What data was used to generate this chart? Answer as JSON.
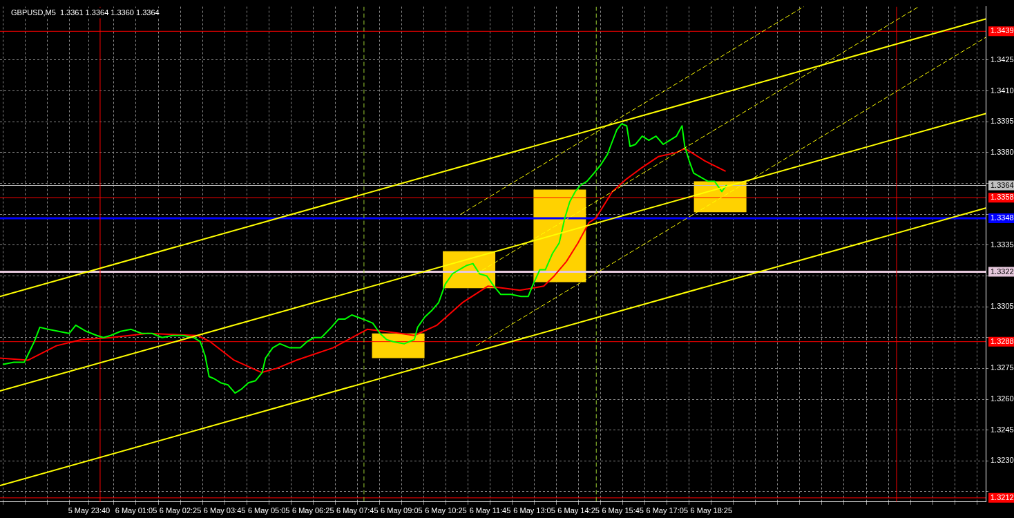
{
  "chart_data": {
    "type": "line",
    "title": "GBPUSD,M5  1.3361 1.3364 1.3360 1.3364",
    "grid": true,
    "legend": false,
    "xlim": [
      "--05-05T20:59",
      "--05-07T02:41"
    ],
    "ylim": [
      1.321,
      1.3451
    ],
    "xticks": [
      {
        "value": "--05-05T21:05",
        "label": null
      },
      {
        "value": "--05-05T21:45",
        "label": null
      },
      {
        "value": "--05-05T22:25",
        "label": null
      },
      {
        "value": "--05-05T23:05",
        "label": null
      },
      {
        "value": "--05-05T23:40",
        "label": "5 May 23:40"
      },
      {
        "value": "--05-06T00:25",
        "label": null
      },
      {
        "value": "--05-06T01:05",
        "label": "6 May 01:05"
      },
      {
        "value": "--05-06T01:45",
        "label": null
      },
      {
        "value": "--05-06T02:25",
        "label": "6 May 02:25"
      },
      {
        "value": "--05-06T03:05",
        "label": null
      },
      {
        "value": "--05-06T03:45",
        "label": "6 May 03:45"
      },
      {
        "value": "--05-06T04:25",
        "label": null
      },
      {
        "value": "--05-06T05:05",
        "label": "6 May 05:05"
      },
      {
        "value": "--05-06T05:45",
        "label": null
      },
      {
        "value": "--05-06T06:25",
        "label": "6 May 06:25"
      },
      {
        "value": "--05-06T07:05",
        "label": null
      },
      {
        "value": "--05-06T07:45",
        "label": "6 May 07:45"
      },
      {
        "value": "--05-06T08:25",
        "label": null
      },
      {
        "value": "--05-06T09:05",
        "label": "6 May 09:05"
      },
      {
        "value": "--05-06T09:45",
        "label": null
      },
      {
        "value": "--05-06T10:25",
        "label": "6 May 10:25"
      },
      {
        "value": "--05-06T11:05",
        "label": null
      },
      {
        "value": "--05-06T11:45",
        "label": "6 May 11:45"
      },
      {
        "value": "--05-06T12:25",
        "label": null
      },
      {
        "value": "--05-06T13:05",
        "label": "6 May 13:05"
      },
      {
        "value": "--05-06T13:45",
        "label": null
      },
      {
        "value": "--05-06T14:25",
        "label": "6 May 14:25"
      },
      {
        "value": "--05-06T15:05",
        "label": null
      },
      {
        "value": "--05-06T15:45",
        "label": "6 May 15:45"
      },
      {
        "value": "--05-06T16:25",
        "label": null
      },
      {
        "value": "--05-06T17:05",
        "label": "6 May 17:05"
      },
      {
        "value": "--05-06T17:45",
        "label": null
      },
      {
        "value": "--05-06T18:25",
        "label": "6 May 18:25"
      },
      {
        "value": "--05-06T19:05",
        "label": null
      },
      {
        "value": "--05-06T19:45",
        "label": null
      },
      {
        "value": "--05-06T20:25",
        "label": null
      },
      {
        "value": "--05-06T21:05",
        "label": null
      },
      {
        "value": "--05-06T21:45",
        "label": null
      },
      {
        "value": "--05-06T22:25",
        "label": null
      },
      {
        "value": "--05-06T23:05",
        "label": null
      },
      {
        "value": "--05-06T23:45",
        "label": null
      },
      {
        "value": "--05-07T00:25",
        "label": null
      },
      {
        "value": "--05-07T01:05",
        "label": null
      },
      {
        "value": "--05-07T01:45",
        "label": null
      },
      {
        "value": "--05-07T02:25",
        "label": null
      }
    ],
    "yticks": [
      {
        "value": 1.3215,
        "label": null
      },
      {
        "value": 1.323,
        "label": "1.3230"
      },
      1.3245,
      {
        "value": 1.326,
        "label": "1.3260"
      },
      1.3275,
      {
        "value": 1.329,
        "label": null
      },
      1.3305,
      {
        "value": 1.332,
        "label": null
      },
      1.3335,
      {
        "value": 1.335,
        "label": null
      },
      {
        "value": 1.3365,
        "label": null
      },
      {
        "value": 1.338,
        "label": "1.3380"
      },
      1.3395,
      {
        "value": 1.341,
        "label": "1.3410"
      },
      1.3425
    ],
    "series": [
      {
        "type": "bar",
        "color": "#ffd200",
        "x": [
          "--05-06T08:59",
          "--05-06T11:07",
          "--05-06T13:51",
          "--05-06T18:41"
        ],
        "base": [
          1.328,
          1.3314,
          1.3317,
          1.3351
        ],
        "values": [
          0.0012,
          0.0018,
          0.0045,
          0.0015
        ]
      },
      {
        "color": "#ffff00",
        "line_style": "solid",
        "x": [
          "--05-05T20:59",
          "--05-07T02:41"
        ],
        "values": [
          1.331,
          1.3445
        ]
      },
      {
        "color": "#ffff00",
        "line_style": "solid",
        "x": [
          "--05-05T20:59",
          "--05-07T02:41"
        ],
        "values": [
          1.3264,
          1.3399
        ]
      },
      {
        "color": "#ffff00",
        "line_style": "solid",
        "x": [
          "--05-05T20:59",
          "--05-07T02:41"
        ],
        "values": [
          1.3218,
          1.3353
        ]
      },
      {
        "color": "#ffff00",
        "line_style": "dashed",
        "x": [
          "--05-06T10:52",
          "--05-06T21:12"
        ],
        "values": [
          1.335,
          1.3451
        ]
      },
      {
        "color": "#ffff00",
        "line_style": "dashed",
        "x": [
          "--05-06T11:20",
          "--05-07T00:40"
        ],
        "values": [
          1.3321,
          1.3451
        ]
      },
      {
        "color": "#ffff00",
        "line_style": "dashed",
        "x": [
          "--05-06T11:20",
          "--05-07T02:41"
        ],
        "values": [
          1.3286,
          1.3436
        ]
      },
      {
        "color": "#00ff00",
        "line_style": "solid",
        "x": [
          "--05-05T21:05",
          "--05-05T21:24",
          "--05-05T21:43",
          "--05-05T21:52",
          "--05-05T22:01",
          "--05-05T22:11",
          "--05-05T22:26",
          "--05-05T22:45",
          "--05-05T23:04",
          "--05-05T23:16",
          "--05-05T23:35",
          "--05-05T23:54",
          "--05-06T00:06",
          "--05-06T00:19",
          "--05-06T00:37",
          "--05-06T00:56",
          "--05-06T01:15",
          "--05-06T01:34",
          "--05-06T01:52",
          "--05-06T02:11",
          "--05-06T02:30",
          "--05-06T02:49",
          "--05-06T03:01",
          "--05-06T03:10",
          "--05-06T03:17",
          "--05-06T03:26",
          "--05-06T03:38",
          "--05-06T03:51",
          "--05-06T04:04",
          "--05-06T04:16",
          "--05-06T04:28",
          "--05-06T04:41",
          "--05-06T04:53",
          "--05-06T04:59",
          "--05-06T05:12",
          "--05-06T05:25",
          "--05-06T05:43",
          "--05-06T06:02",
          "--05-06T06:14",
          "--05-06T06:27",
          "--05-06T06:40",
          "--05-06T06:58",
          "--05-06T07:11",
          "--05-06T07:23",
          "--05-06T07:35",
          "--05-06T07:55",
          "--05-06T08:13",
          "--05-06T08:26",
          "--05-06T08:38",
          "--05-06T08:50",
          "--05-06T09:10",
          "--05-06T09:28",
          "--05-06T09:34",
          "--05-06T09:47",
          "--05-06T09:59",
          "--05-06T10:12",
          "--05-06T10:24",
          "--05-06T10:37",
          "--05-06T10:49",
          "--05-06T11:02",
          "--05-06T11:14",
          "--05-06T11:26",
          "--05-06T11:39",
          "--05-06T11:52",
          "--05-06T12:04",
          "--05-06T12:23",
          "--05-06T12:41",
          "--05-06T12:54",
          "--05-06T13:03",
          "--05-06T13:15",
          "--05-06T13:25",
          "--05-06T13:38",
          "--05-06T13:50",
          "--05-06T14:00",
          "--05-06T14:09",
          "--05-06T14:19",
          "--05-06T14:28",
          "--05-06T14:40",
          "--05-06T14:53",
          "--05-06T15:05",
          "--05-06T15:17",
          "--05-06T15:24",
          "--05-06T15:34",
          "--05-06T15:43",
          "--05-06T15:52",
          "--05-06T15:58",
          "--05-06T16:08",
          "--05-06T16:20",
          "--05-06T16:32",
          "--05-06T16:45",
          "--05-06T16:58",
          "--05-06T17:10",
          "--05-06T17:22",
          "--05-06T17:32",
          "--05-06T17:37",
          "--05-06T17:45",
          "--05-06T17:53",
          "--05-06T18:06",
          "--05-06T18:19",
          "--05-06T18:31",
          "--05-06T18:44",
          "--05-06T18:52"
        ],
        "values": [
          1.3277,
          1.3278,
          1.3278,
          1.3283,
          1.3288,
          1.3295,
          1.3294,
          1.3293,
          1.3292,
          1.3296,
          1.3293,
          1.3291,
          1.329,
          1.3291,
          1.3293,
          1.3294,
          1.3292,
          1.3292,
          1.329,
          1.3291,
          1.3291,
          1.329,
          1.3288,
          1.3281,
          1.3271,
          1.327,
          1.3268,
          1.3267,
          1.3263,
          1.3265,
          1.3268,
          1.3269,
          1.3273,
          1.328,
          1.3285,
          1.3287,
          1.3285,
          1.3285,
          1.3288,
          1.329,
          1.329,
          1.3295,
          1.3299,
          1.3299,
          1.3301,
          1.3299,
          1.3297,
          1.3292,
          1.3289,
          1.3288,
          1.3287,
          1.3289,
          1.3295,
          1.33,
          1.3303,
          1.3307,
          1.3316,
          1.3321,
          1.3323,
          1.3325,
          1.3326,
          1.3321,
          1.332,
          1.3315,
          1.3311,
          1.3311,
          1.331,
          1.331,
          1.3316,
          1.3323,
          1.3323,
          1.3331,
          1.3336,
          1.3348,
          1.3356,
          1.3361,
          1.3364,
          1.3366,
          1.337,
          1.3374,
          1.3379,
          1.3384,
          1.3391,
          1.3394,
          1.3393,
          1.3383,
          1.3384,
          1.3388,
          1.3386,
          1.3388,
          1.3384,
          1.3386,
          1.3388,
          1.3393,
          1.3383,
          1.3376,
          1.337,
          1.3368,
          1.3366,
          1.3366,
          1.3361,
          1.3364
        ]
      },
      {
        "color": "#ff0000",
        "line_style": "solid",
        "x": [
          "--05-05T20:59",
          "--05-05T21:50",
          "--05-05T22:41",
          "--05-05T23:26",
          "--05-06T00:20",
          "--05-06T01:26",
          "--05-06T02:56",
          "--05-06T03:19",
          "--05-06T04:02",
          "--05-06T04:52",
          "--05-06T05:19",
          "--05-06T05:55",
          "--05-06T07:01",
          "--05-06T08:03",
          "--05-06T08:34",
          "--05-06T09:03",
          "--05-06T09:28",
          "--05-06T10:09",
          "--05-06T10:55",
          "--05-06T11:41",
          "--05-06T12:39",
          "--05-06T13:22",
          "--05-06T13:41",
          "--05-06T14:03",
          "--05-06T14:24",
          "--05-06T14:44",
          "--05-06T14:56",
          "--05-06T15:26",
          "--05-06T15:51",
          "--05-06T16:16",
          "--05-06T16:49",
          "--05-06T17:22",
          "--05-06T17:37",
          "--05-06T18:13",
          "--05-06T18:50"
        ],
        "values": [
          1.328,
          1.3279,
          1.3286,
          1.3289,
          1.329,
          1.3292,
          1.3291,
          1.3288,
          1.3279,
          1.3273,
          1.3275,
          1.3279,
          1.3285,
          1.3294,
          1.3293,
          1.3292,
          1.3291,
          1.3296,
          1.3307,
          1.3315,
          1.3313,
          1.3315,
          1.332,
          1.3327,
          1.3336,
          1.3346,
          1.3348,
          1.3361,
          1.3367,
          1.3372,
          1.3378,
          1.338,
          1.3382,
          1.3376,
          1.3371
        ]
      }
    ],
    "ref_lines": [
      {
        "axis": "y",
        "value": 1.3439,
        "label": "1.3439",
        "color": "#ff0000"
      },
      {
        "axis": "y",
        "value": 1.3364,
        "label": "1.3364",
        "color": "#c0c0c0"
      },
      {
        "axis": "y",
        "value": 1.3358,
        "label": "1.3358",
        "color": "#ff0000"
      },
      {
        "axis": "y",
        "value": 1.3348,
        "label": "1.3348",
        "color": "#0000ff"
      },
      {
        "axis": "y",
        "value": 1.3322,
        "label": "1.3322",
        "color": "#e6c8dc"
      },
      {
        "axis": "y",
        "value": 1.3288,
        "label": "1.3288",
        "color": "#ff0000"
      },
      {
        "axis": "y",
        "value": 1.3212,
        "label": "1.3212",
        "color": "#ff0000"
      },
      {
        "axis": "x",
        "value": "--05-06T00:00",
        "color": "#ff0000"
      },
      {
        "axis": "x",
        "value": "--05-07T00:00",
        "color": "#ff0000"
      },
      {
        "axis": "x",
        "value": "--05-06T07:57",
        "color": "#9acd32",
        "line_style": "dashed"
      },
      {
        "axis": "x",
        "value": "--05-06T14:57",
        "color": "#9acd32",
        "line_style": "dashed"
      }
    ]
  }
}
